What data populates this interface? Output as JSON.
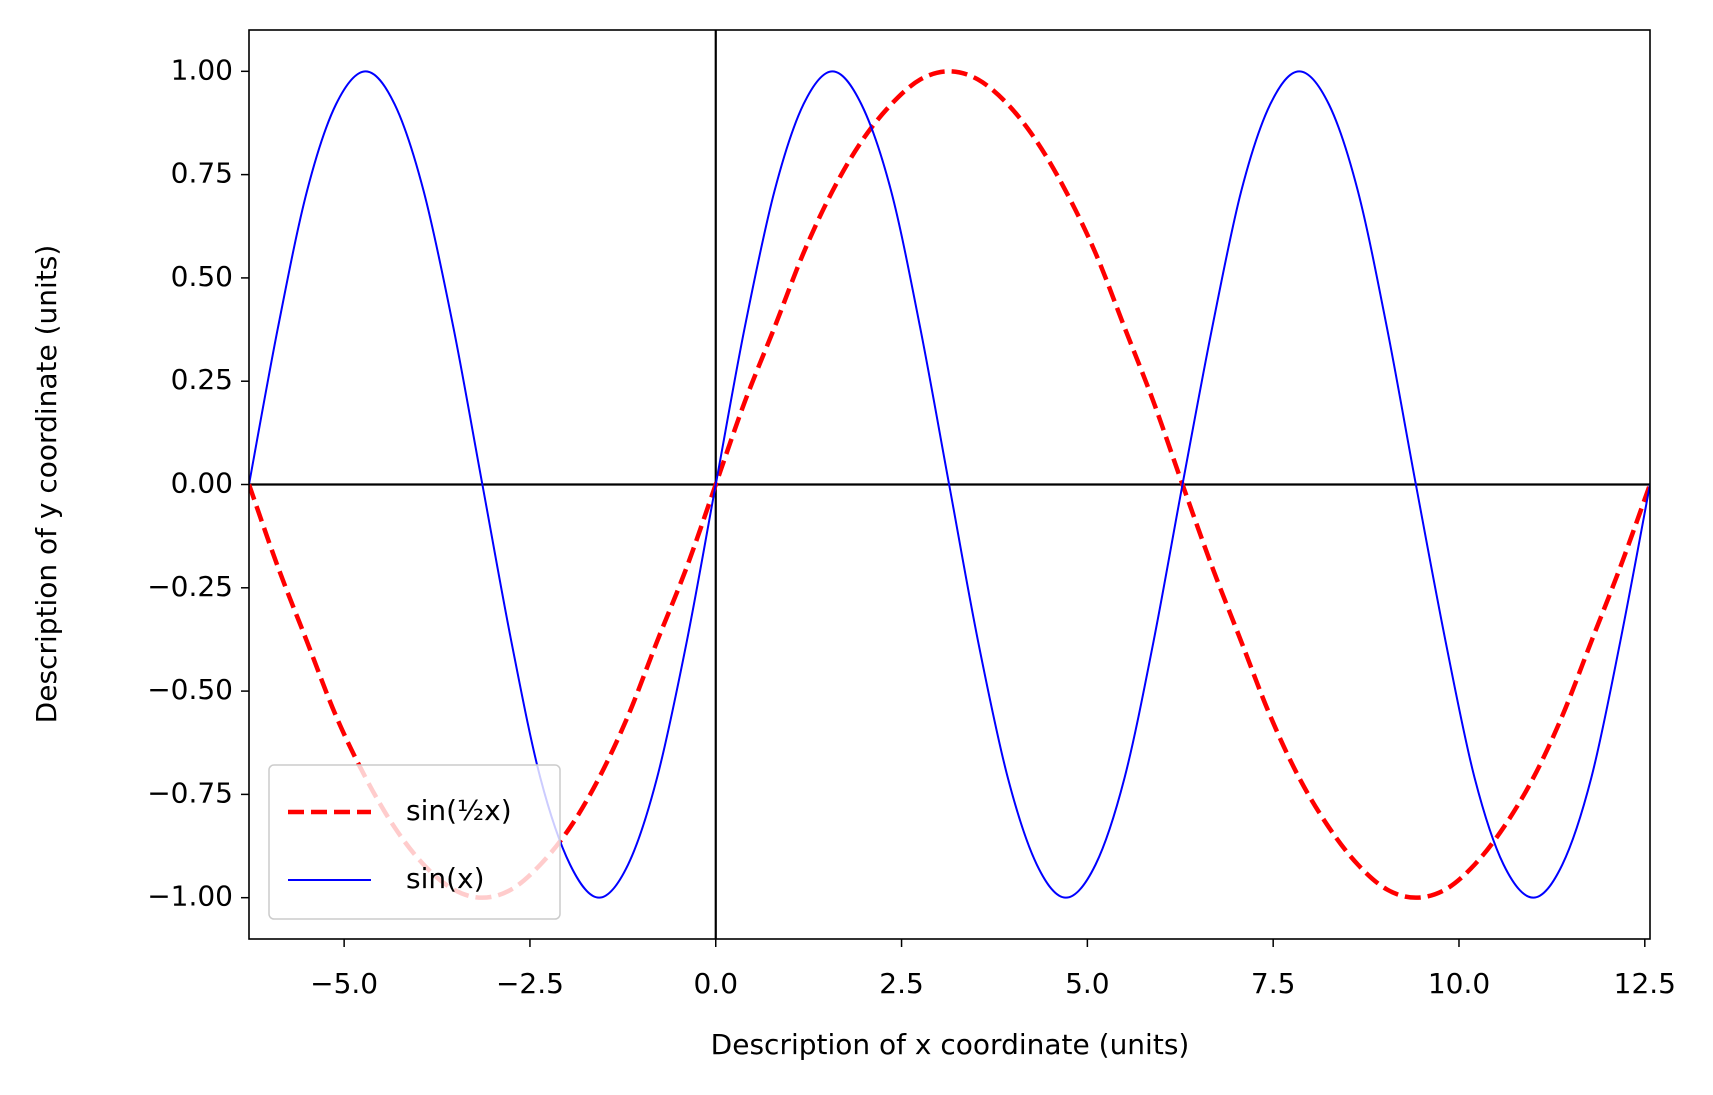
{
  "chart_data": {
    "type": "line",
    "xlabel": "Description of x coordinate (units)",
    "ylabel": "Description of y coordinate (units)",
    "x": [
      -6.28,
      -5.89,
      -5.5,
      -5.11,
      -4.71,
      -4.32,
      -3.93,
      -3.53,
      -3.14,
      -2.75,
      -2.36,
      -1.96,
      -1.57,
      -1.18,
      -0.79,
      -0.39,
      0,
      0.39,
      0.79,
      1.18,
      1.57,
      1.96,
      2.36,
      2.75,
      3.14,
      3.53,
      3.93,
      4.32,
      4.71,
      5.11,
      5.5,
      5.89,
      6.28,
      6.68,
      7.07,
      7.46,
      7.85,
      8.25,
      8.64,
      9.03,
      9.42,
      9.82,
      10.21,
      10.6,
      11.0,
      11.39,
      11.78,
      12.17,
      12.57
    ],
    "series": [
      {
        "name": "sin(½x)",
        "color": "#ff0000",
        "dashed": true,
        "values": [
          0,
          -0.2,
          -0.38,
          -0.56,
          -0.71,
          -0.83,
          -0.92,
          -0.98,
          -1,
          -0.98,
          -0.92,
          -0.83,
          -0.71,
          -0.56,
          -0.38,
          -0.2,
          0,
          0.2,
          0.38,
          0.56,
          0.71,
          0.83,
          0.92,
          0.98,
          1,
          0.98,
          0.92,
          0.83,
          0.71,
          0.56,
          0.38,
          0.2,
          0,
          -0.2,
          -0.38,
          -0.56,
          -0.71,
          -0.83,
          -0.92,
          -0.98,
          -1,
          -0.98,
          -0.92,
          -0.83,
          -0.71,
          -0.56,
          -0.38,
          -0.2,
          0
        ]
      },
      {
        "name": "sin(x)",
        "color": "#0000ff",
        "dashed": false,
        "values": [
          0,
          0.38,
          0.71,
          0.92,
          1,
          0.92,
          0.71,
          0.38,
          0,
          -0.38,
          -0.71,
          -0.92,
          -1,
          -0.92,
          -0.71,
          -0.38,
          0,
          0.38,
          0.71,
          0.92,
          1,
          0.92,
          0.71,
          0.38,
          0,
          -0.38,
          -0.71,
          -0.92,
          -1,
          -0.92,
          -0.71,
          -0.38,
          0,
          0.38,
          0.71,
          0.92,
          1,
          0.92,
          0.71,
          0.38,
          0,
          -0.38,
          -0.71,
          -0.92,
          -1,
          -0.92,
          -0.71,
          -0.38,
          0
        ]
      }
    ],
    "xlim": [
      -6.28,
      12.57
    ],
    "ylim": [
      -1.1,
      1.1
    ],
    "xticks": [
      {
        "value": -5,
        "label": "−5.0"
      },
      {
        "value": -2.5,
        "label": "−2.5"
      },
      {
        "value": 0,
        "label": "0.0"
      },
      {
        "value": 2.5,
        "label": "2.5"
      },
      {
        "value": 5,
        "label": "5.0"
      },
      {
        "value": 7.5,
        "label": "7.5"
      },
      {
        "value": 10,
        "label": "10.0"
      },
      {
        "value": 12.5,
        "label": "12.5"
      }
    ],
    "yticks": [
      {
        "value": -1,
        "label": "−1.00"
      },
      {
        "value": -0.75,
        "label": "−0.75"
      },
      {
        "value": -0.5,
        "label": "−0.50"
      },
      {
        "value": -0.25,
        "label": "−0.25"
      },
      {
        "value": 0,
        "label": "0.00"
      },
      {
        "value": 0.25,
        "label": "0.25"
      },
      {
        "value": 0.5,
        "label": "0.50"
      },
      {
        "value": 0.75,
        "label": "0.75"
      },
      {
        "value": 1,
        "label": "1.00"
      }
    ],
    "reference_lines": {
      "x": 0,
      "y": 0
    },
    "legend": "lower left",
    "grid": false
  }
}
